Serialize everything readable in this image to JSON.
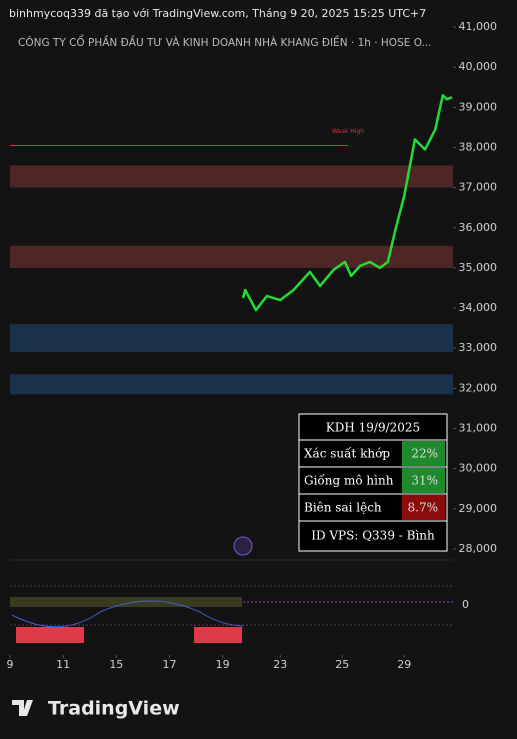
{
  "header": {
    "credit": "binhmycoq339 đã tạo với TradingView.com, Tháng 9 20, 2025 15:25 UTC+7",
    "symbol": "CÔNG TY CỔ PHẦN ĐẦU TƯ VÀ KINH DOANH NHÀ KHANG ĐIỀN · 1h · HOSE  O..."
  },
  "chart_data": {
    "type": "line",
    "ylim": [
      27750,
      41000
    ],
    "yticks": [
      {
        "value": 41000,
        "label": "41,000"
      },
      {
        "value": 40000,
        "label": "40,000"
      },
      {
        "value": 39000,
        "label": "39,000"
      },
      {
        "value": 38000,
        "label": "38,000"
      },
      {
        "value": 37000,
        "label": "37,000"
      },
      {
        "value": 36000,
        "label": "36,000"
      },
      {
        "value": 35000,
        "label": "35,000"
      },
      {
        "value": 34000,
        "label": "34,000"
      },
      {
        "value": 33000,
        "label": "33,000"
      },
      {
        "value": 32000,
        "label": "32,000"
      },
      {
        "value": 31000,
        "label": "31,000"
      },
      {
        "value": 30000,
        "label": "30,000"
      },
      {
        "value": 29000,
        "label": "29,000"
      },
      {
        "value": 28000,
        "label": "28,000"
      }
    ],
    "xlim": [
      0,
      100
    ],
    "xticks": [
      {
        "value": 0,
        "label": "9"
      },
      {
        "value": 12,
        "label": "11"
      },
      {
        "value": 24,
        "label": "15"
      },
      {
        "value": 36,
        "label": "17"
      },
      {
        "value": 48,
        "label": "19"
      },
      {
        "value": 61,
        "label": "23"
      },
      {
        "value": 75,
        "label": "25"
      },
      {
        "value": 89,
        "label": "29"
      }
    ],
    "series": [
      {
        "color": "#22dd33",
        "x": [
          52.6,
          53.1,
          55.5,
          58,
          61,
          64,
          67.7,
          70,
          73,
          75.6,
          77,
          79,
          81.3,
          83.5,
          85.3,
          87,
          89,
          91.4,
          93.7,
          96,
          97.7,
          98.6,
          99.8
        ],
        "values": [
          34250,
          34450,
          33950,
          34300,
          34200,
          34450,
          34900,
          34550,
          34950,
          35150,
          34800,
          35050,
          35150,
          35000,
          35150,
          35950,
          36800,
          38200,
          37950,
          38450,
          39300,
          39200,
          39250
        ]
      }
    ],
    "zones": [
      {
        "from": 37550,
        "to": 37000,
        "color": "#5a2a2a"
      },
      {
        "from": 35550,
        "to": 35000,
        "color": "#5a2a2a"
      },
      {
        "from": 33600,
        "to": 32900,
        "color": "#1f3556"
      },
      {
        "from": 32350,
        "to": 31850,
        "color": "#1f3556"
      }
    ],
    "annotations": [
      {
        "text": "Weak High",
        "value": 38050,
        "color": "#e0303a"
      }
    ]
  },
  "table": {
    "title": "KDH 19/9/2025",
    "rows": [
      [
        "Xác suất khớp",
        "22%"
      ],
      [
        "Giống mô hình",
        "31%"
      ],
      [
        "Biên sai lệch",
        "8.7%"
      ]
    ],
    "footer": "ID VPS: Q339 - Bình"
  },
  "indicator": {
    "zero_label": "0"
  },
  "brand": "TradingView"
}
